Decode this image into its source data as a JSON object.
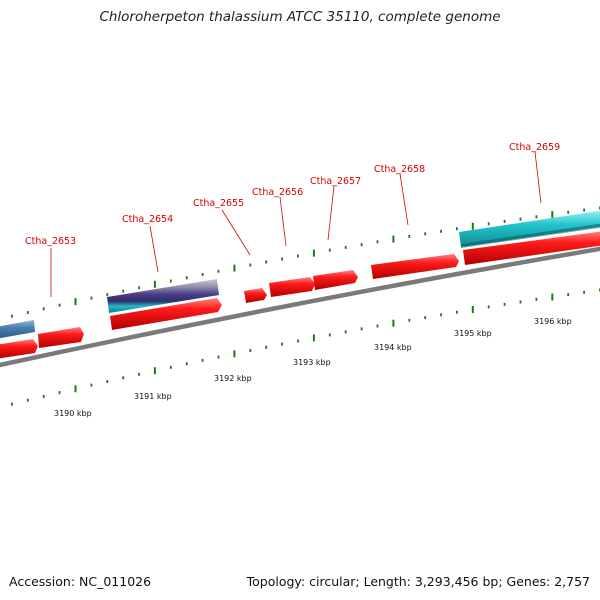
{
  "title": "Chloroherpeton thalassium ATCC 35110, complete genome",
  "footer": {
    "accession": "Accession: NC_011026",
    "summary": "Topology: circular; Length: 3,293,456 bp; Genes: 2,757"
  },
  "colors": {
    "gene_red": "#ee1111",
    "backbone_gray": "#7a7a7a",
    "tick_green": "#1a7a1a",
    "feature_cyan": "#22c4cc",
    "feature_blue": "#4a7fb0",
    "feature_purple": "#4a3d8c",
    "label_red": "#d40000"
  },
  "genes": [
    {
      "id": "Ctha_2653",
      "label": "Ctha_2653"
    },
    {
      "id": "Ctha_2654",
      "label": "Ctha_2654"
    },
    {
      "id": "Ctha_2655",
      "label": "Ctha_2655"
    },
    {
      "id": "Ctha_2656",
      "label": "Ctha_2656"
    },
    {
      "id": "Ctha_2657",
      "label": "Ctha_2657"
    },
    {
      "id": "Ctha_2658",
      "label": "Ctha_2658"
    },
    {
      "id": "Ctha_2659",
      "label": "Ctha_2659"
    }
  ],
  "scale_ticks": [
    "3190 kbp",
    "3191 kbp",
    "3192 kbp",
    "3193 kbp",
    "3194 kbp",
    "3195 kbp",
    "3196 kbp"
  ]
}
